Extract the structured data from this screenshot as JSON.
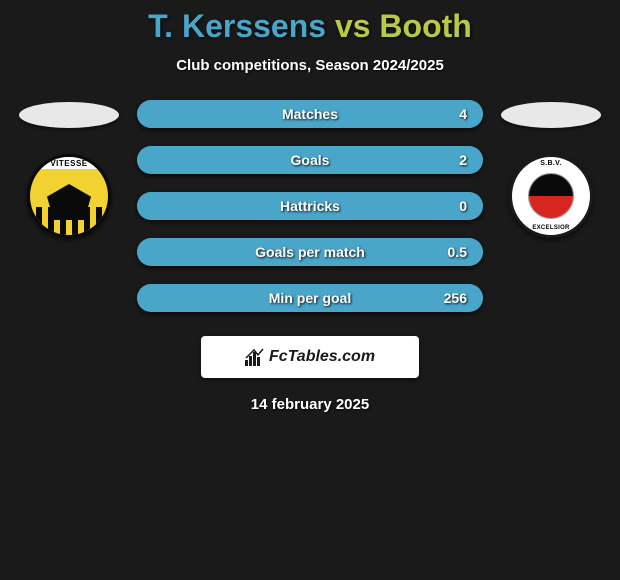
{
  "title": {
    "player1": "T. Kerssens",
    "vs": "vs",
    "player2": "Booth",
    "player1_color": "#4aa6c9",
    "vs_color": "#b8c94a",
    "player2_color": "#b8c94a"
  },
  "subtitle": "Club competitions, Season 2024/2025",
  "left_club": {
    "name": "Vitesse",
    "badge_name": "VITESSE"
  },
  "right_club": {
    "name": "Excelsior",
    "badge_top": "S.B.V.",
    "badge_bottom": "EXCELSIOR"
  },
  "stats": [
    {
      "label": "Matches",
      "value": "4",
      "fill_pct": 100,
      "fill_color": "#4aa6c9",
      "bg_color": "#4aa6c9"
    },
    {
      "label": "Goals",
      "value": "2",
      "fill_pct": 100,
      "fill_color": "#4aa6c9",
      "bg_color": "#4aa6c9"
    },
    {
      "label": "Hattricks",
      "value": "0",
      "fill_pct": 100,
      "fill_color": "#4aa6c9",
      "bg_color": "#4aa6c9"
    },
    {
      "label": "Goals per match",
      "value": "0.5",
      "fill_pct": 100,
      "fill_color": "#4aa6c9",
      "bg_color": "#4aa6c9"
    },
    {
      "label": "Min per goal",
      "value": "256",
      "fill_pct": 100,
      "fill_color": "#4aa6c9",
      "bg_color": "#4aa6c9"
    }
  ],
  "brand": "FcTables.com",
  "date": "14 february 2025",
  "colors": {
    "background": "#1a1a1a",
    "ellipse": "#e8e8e8",
    "text": "#ffffff"
  }
}
